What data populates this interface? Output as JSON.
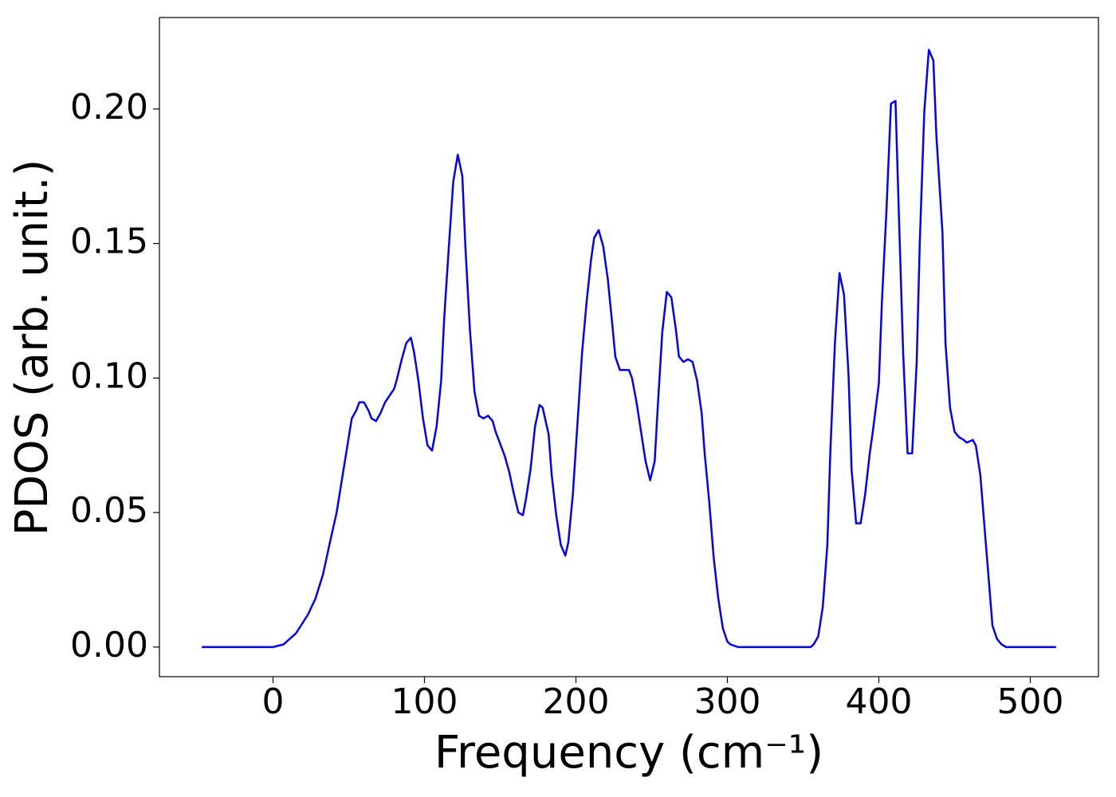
{
  "chart_data": {
    "type": "line",
    "xlabel": "Frequency (cm⁻¹)",
    "ylabel": "PDOS (arb. unit.)",
    "xlim": [
      -75,
      545
    ],
    "ylim": [
      -0.011,
      0.234
    ],
    "xticks": [
      0,
      100,
      200,
      300,
      400,
      500
    ],
    "yticks": [
      {
        "value": 0,
        "label": "0.00"
      },
      {
        "value": 0.05,
        "label": "0.05"
      },
      {
        "value": 0.1,
        "label": "0.10"
      },
      {
        "value": 0.15,
        "label": "0.15"
      },
      {
        "value": 0.2,
        "label": "0.20"
      }
    ],
    "grid": false,
    "series": [
      {
        "color": "#0000ff",
        "x": [
          -47,
          0,
          7,
          15,
          23,
          28,
          33,
          38,
          42,
          46,
          50,
          52,
          55,
          57,
          60,
          63,
          65,
          68,
          71,
          74,
          80,
          82,
          85,
          88,
          91,
          93,
          96,
          99,
          102,
          105,
          108,
          111,
          113,
          116,
          119,
          122,
          125,
          127,
          130,
          133,
          136,
          139,
          142,
          145,
          147,
          153,
          156,
          159,
          162,
          165,
          167,
          170,
          173,
          176,
          178,
          182,
          184,
          187,
          190,
          193,
          195,
          198,
          201,
          204,
          207,
          210,
          212,
          215,
          218,
          221,
          224,
          226,
          229,
          232,
          235,
          237,
          240,
          243,
          246,
          249,
          252,
          254,
          257,
          260,
          263,
          266,
          268,
          271,
          274,
          277,
          280,
          283,
          285,
          288,
          291,
          294,
          297,
          300,
          302,
          307,
          355,
          357,
          360,
          363,
          366,
          368,
          371,
          374,
          377,
          380,
          382,
          385,
          388,
          391,
          394,
          396,
          400,
          402,
          405,
          408,
          411,
          413,
          416,
          419,
          422,
          425,
          427,
          430,
          433,
          436,
          438,
          442,
          444,
          447,
          450,
          453,
          456,
          458,
          462,
          464,
          467,
          470,
          473,
          475,
          478,
          481,
          484,
          517
        ],
        "values": [
          0,
          0,
          0.001,
          0.005,
          0.012,
          0.018,
          0.027,
          0.04,
          0.05,
          0.064,
          0.078,
          0.085,
          0.088,
          0.091,
          0.091,
          0.088,
          0.085,
          0.084,
          0.087,
          0.091,
          0.096,
          0.1,
          0.107,
          0.113,
          0.115,
          0.11,
          0.099,
          0.085,
          0.075,
          0.073,
          0.082,
          0.099,
          0.122,
          0.148,
          0.173,
          0.183,
          0.175,
          0.149,
          0.118,
          0.095,
          0.086,
          0.085,
          0.086,
          0.084,
          0.08,
          0.071,
          0.065,
          0.057,
          0.05,
          0.049,
          0.055,
          0.066,
          0.082,
          0.09,
          0.089,
          0.079,
          0.064,
          0.049,
          0.038,
          0.034,
          0.039,
          0.057,
          0.083,
          0.109,
          0.128,
          0.144,
          0.152,
          0.155,
          0.149,
          0.137,
          0.12,
          0.108,
          0.103,
          0.103,
          0.103,
          0.1,
          0.091,
          0.08,
          0.069,
          0.062,
          0.069,
          0.089,
          0.117,
          0.132,
          0.13,
          0.118,
          0.108,
          0.106,
          0.107,
          0.106,
          0.099,
          0.087,
          0.072,
          0.054,
          0.033,
          0.018,
          0.007,
          0.002,
          0.001,
          0,
          0,
          0.001,
          0.004,
          0.015,
          0.038,
          0.073,
          0.113,
          0.139,
          0.131,
          0.101,
          0.066,
          0.046,
          0.046,
          0.057,
          0.072,
          0.08,
          0.098,
          0.128,
          0.162,
          0.202,
          0.203,
          0.165,
          0.11,
          0.072,
          0.072,
          0.106,
          0.15,
          0.199,
          0.222,
          0.218,
          0.19,
          0.154,
          0.113,
          0.089,
          0.08,
          0.078,
          0.077,
          0.076,
          0.077,
          0.075,
          0.064,
          0.043,
          0.022,
          0.008,
          0.003,
          0.001,
          0,
          0
        ]
      }
    ]
  }
}
